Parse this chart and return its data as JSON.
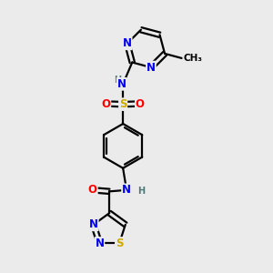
{
  "bg_color": "#ebebeb",
  "atom_colors": {
    "C": "#000000",
    "N": "#0000ee",
    "O": "#ff0000",
    "S": "#ccaa00",
    "H": "#507878"
  },
  "bond_color": "#000000",
  "bond_width": 1.6,
  "font_size_atom": 8.5,
  "font_size_small": 7.0,
  "font_size_methyl": 7.5
}
